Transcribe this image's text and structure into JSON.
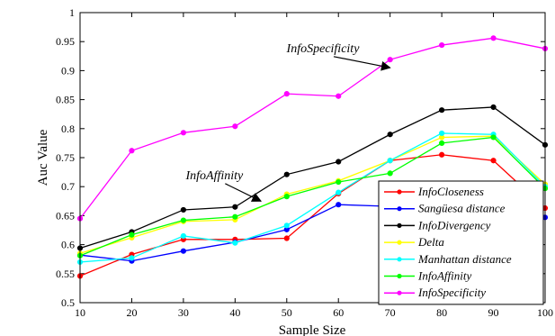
{
  "chart_data": {
    "type": "line",
    "xlabel": "Sample Size",
    "ylabel": "Auc Value",
    "xlim": [
      10,
      100
    ],
    "ylim": [
      0.5,
      1
    ],
    "grid": false,
    "legend_placement": "bottom-right",
    "x": [
      10,
      20,
      30,
      40,
      50,
      60,
      70,
      80,
      90,
      100
    ],
    "x_ticks": [
      "10",
      "20",
      "30",
      "40",
      "50",
      "60",
      "70",
      "80",
      "90",
      "100"
    ],
    "y_ticks": [
      "0.5",
      "0.55",
      "0.6",
      "0.65",
      "0.7",
      "0.75",
      "0.8",
      "0.85",
      "0.9",
      "0.95",
      "1"
    ],
    "series": [
      {
        "name": "InfoCloseness",
        "color": "#ff0000",
        "values": [
          0.546,
          0.583,
          0.609,
          0.609,
          0.611,
          0.688,
          0.745,
          0.755,
          0.745,
          0.663
        ]
      },
      {
        "name": "Sangüesa distance",
        "color": "#0000ff",
        "values": [
          0.582,
          0.572,
          0.589,
          0.604,
          0.626,
          0.669,
          0.666,
          0.665,
          0.665,
          0.647
        ]
      },
      {
        "name": "InfoDivergency",
        "color": "#000000",
        "values": [
          0.594,
          0.622,
          0.66,
          0.665,
          0.721,
          0.743,
          0.79,
          0.832,
          0.837,
          0.772
        ]
      },
      {
        "name": "Delta",
        "color": "#ffff00",
        "values": [
          0.585,
          0.612,
          0.64,
          0.643,
          0.687,
          0.71,
          0.745,
          0.785,
          0.787,
          0.704
        ]
      },
      {
        "name": "Manhattan distance",
        "color": "#00ffff",
        "values": [
          0.57,
          0.577,
          0.615,
          0.603,
          0.633,
          0.69,
          0.745,
          0.792,
          0.79,
          0.7
        ]
      },
      {
        "name": "InfoAffinity",
        "color": "#00ff00",
        "values": [
          0.581,
          0.617,
          0.642,
          0.648,
          0.683,
          0.708,
          0.723,
          0.775,
          0.785,
          0.697
        ]
      },
      {
        "name": "InfoSpecificity",
        "color": "#ff00ff",
        "values": [
          0.645,
          0.762,
          0.793,
          0.804,
          0.86,
          0.856,
          0.919,
          0.944,
          0.956,
          0.938
        ]
      }
    ],
    "annotations": [
      {
        "text": "InfoSpecificity",
        "target_x": 70,
        "target_y": 0.905,
        "label_at_x": 57,
        "label_at_y": 0.932
      },
      {
        "text": "InfoAffinity",
        "target_x": 45,
        "target_y": 0.675,
        "label_at_x": 36,
        "label_at_y": 0.713
      }
    ]
  }
}
